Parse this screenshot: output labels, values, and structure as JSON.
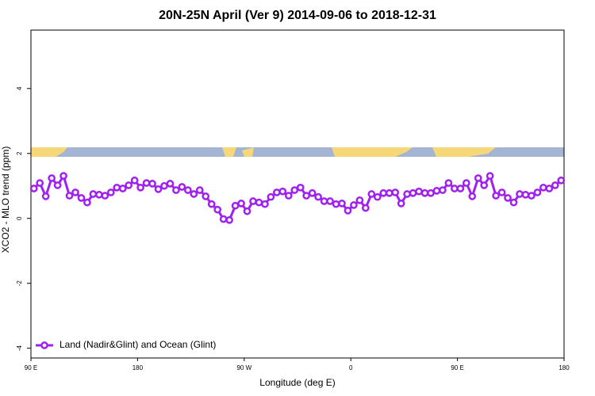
{
  "chart_data": {
    "type": "line",
    "title": "20N-25N April (Ver 9)   2014-09-06 to 2018-12-31",
    "xlabel": "Longitude (deg E)",
    "ylabel": "XCO2 - MLO trend (ppm)",
    "x": [
      92.5,
      97.5,
      102.5,
      107.5,
      112.5,
      117.5,
      122.5,
      127.5,
      132.5,
      137.5,
      142.5,
      147.5,
      152.5,
      157.5,
      162.5,
      167.5,
      172.5,
      177.5,
      182.5,
      187.5,
      192.5,
      197.5,
      202.5,
      207.5,
      212.5,
      217.5,
      222.5,
      227.5,
      232.5,
      237.5,
      242.5,
      247.5,
      252.5,
      257.5,
      262.5,
      267.5,
      272.5,
      277.5,
      282.5,
      287.5,
      292.5,
      297.5,
      302.5,
      307.5,
      312.5,
      317.5,
      322.5,
      327.5,
      332.5,
      337.5,
      342.5,
      347.5,
      352.5,
      357.5,
      362.5,
      367.5,
      372.5,
      377.5,
      382.5,
      387.5,
      392.5,
      397.5,
      402.5,
      407.5,
      412.5,
      417.5,
      422.5,
      427.5,
      432.5,
      437.5,
      442.5,
      447.5,
      452.5,
      457.5,
      462.5,
      467.5,
      472.5,
      477.5,
      482.5,
      487.5,
      492.5,
      497.5,
      502.5,
      507.5,
      512.5,
      517.5,
      522.5,
      527.5,
      532.5,
      537.5
    ],
    "series": [
      {
        "name": "Land (Nadir&Glint) and Ocean (Glint)",
        "color": "#a020f0",
        "values": [
          0.92,
          1.09,
          0.68,
          1.24,
          1.02,
          1.31,
          0.7,
          0.8,
          0.63,
          0.49,
          0.75,
          0.73,
          0.7,
          0.8,
          0.95,
          0.92,
          1.02,
          1.17,
          0.95,
          1.09,
          1.07,
          0.9,
          1.0,
          1.07,
          0.87,
          0.97,
          0.87,
          0.75,
          0.87,
          0.68,
          0.44,
          0.27,
          -0.02,
          -0.05,
          0.39,
          0.46,
          0.22,
          0.53,
          0.49,
          0.44,
          0.66,
          0.8,
          0.83,
          0.7,
          0.87,
          0.95,
          0.7,
          0.78,
          0.66,
          0.53,
          0.53,
          0.44,
          0.46,
          0.24,
          0.41,
          0.56,
          0.32,
          0.75,
          0.66,
          0.78,
          0.78,
          0.8,
          0.46,
          0.75,
          0.78,
          0.83,
          0.78,
          0.78,
          0.85,
          0.87,
          1.09,
          0.92,
          0.92,
          1.09,
          0.68,
          1.24,
          1.02,
          1.31,
          0.7,
          0.8,
          0.63,
          0.49,
          0.75,
          0.73,
          0.7,
          0.8,
          0.95,
          0.92,
          1.02,
          1.17
        ]
      }
    ],
    "xlim": [
      90,
      540
    ],
    "xticks": [
      {
        "value": 90,
        "label": "90 E"
      },
      180,
      {
        "value": 270,
        "label": "90 W"
      },
      {
        "value": 360,
        "label": "0"
      },
      {
        "value": 450,
        "label": "90 E"
      },
      {
        "value": 540,
        "label": "180"
      }
    ],
    "ylim": [
      -4.3,
      5.8
    ],
    "yticks": [
      -4,
      -2,
      0,
      2,
      4
    ],
    "legend": "bottom-left"
  }
}
